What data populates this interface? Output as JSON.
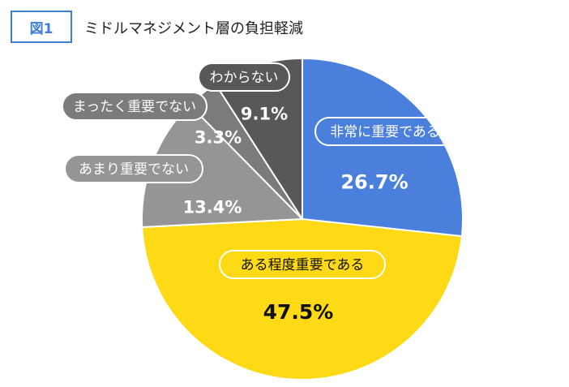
{
  "header": {
    "figure_label": "図1",
    "title": "ミドルマネジメント層の負担軽減"
  },
  "chart_data": {
    "type": "pie",
    "title": "ミドルマネジメント層の負担軽減",
    "start": "12 o'clock",
    "direction": "clockwise",
    "slices": [
      {
        "label": "非常に重要である",
        "value": 26.7,
        "value_label": "26.7%",
        "color": "#4a7fdc",
        "value_color": "#ffffff",
        "callout_style": "outlined-on-slice"
      },
      {
        "label": "ある程度重要である",
        "value": 47.5,
        "value_label": "47.5%",
        "color": "#fdd916",
        "value_color": "#111111",
        "callout_style": "outlined-on-slice"
      },
      {
        "label": "あまり重要でない",
        "value": 13.4,
        "value_label": "13.4%",
        "color": "#959597",
        "value_color": "#ffffff",
        "callout_style": "filled-pill"
      },
      {
        "label": "まったく重要でない",
        "value": 3.3,
        "value_label": "3.3%",
        "color": "#7b7b7e",
        "value_color": "#ffffff",
        "callout_style": "filled-pill"
      },
      {
        "label": "わからない",
        "value": 9.1,
        "value_label": "9.1%",
        "color": "#58585b",
        "value_color": "#ffffff",
        "callout_style": "filled-pill"
      }
    ]
  }
}
